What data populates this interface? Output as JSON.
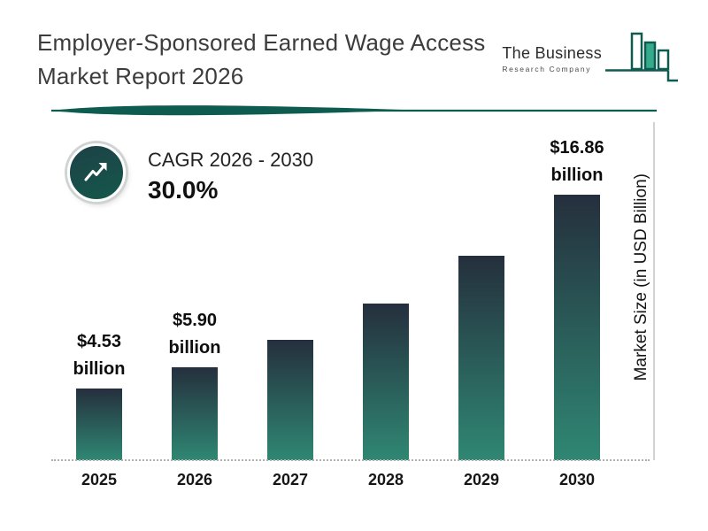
{
  "header": {
    "title_line1": "Employer-Sponsored Earned Wage Access",
    "title_line2": "Market Report 2026",
    "logo": {
      "name": "The Business",
      "subtitle": "Research Company"
    }
  },
  "cagr": {
    "label": "CAGR 2026 - 2030",
    "value": "30.0%"
  },
  "chart_data": {
    "type": "bar",
    "title": "Employer-Sponsored Earned Wage Access Market Report 2026",
    "categories": [
      "2025",
      "2026",
      "2027",
      "2028",
      "2029",
      "2030"
    ],
    "values": [
      4.53,
      5.9,
      7.67,
      9.97,
      12.96,
      16.86
    ],
    "unit": "USD Billion",
    "ylabel": "Market Size (in USD Billion)",
    "xlabel": "",
    "ylim": [
      0,
      17
    ],
    "grid": false,
    "labels": [
      {
        "line1": "$4.53",
        "line2": "billion"
      },
      {
        "line1": "$5.90",
        "line2": "billion"
      },
      null,
      null,
      null,
      {
        "line1": "$16.86",
        "line2": "billion"
      }
    ]
  },
  "colors": {
    "accent_teal": "#0e5c50",
    "bar_top": "#252f3d",
    "bar_bottom": "#2f8773",
    "logo_green": "#35ab8c",
    "circle_fill": "#15584b"
  }
}
